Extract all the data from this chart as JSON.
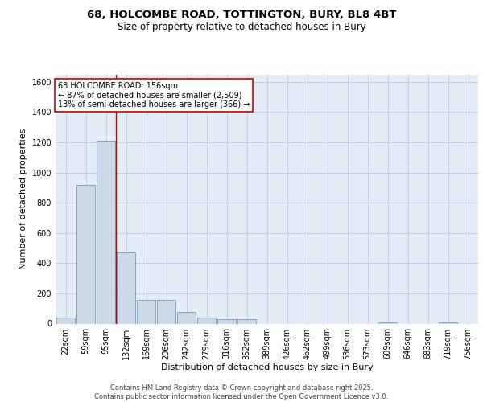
{
  "title_line1": "68, HOLCOMBE ROAD, TOTTINGTON, BURY, BL8 4BT",
  "title_line2": "Size of property relative to detached houses in Bury",
  "xlabel": "Distribution of detached houses by size in Bury",
  "ylabel": "Number of detached properties",
  "categories": [
    "22sqm",
    "59sqm",
    "95sqm",
    "132sqm",
    "169sqm",
    "206sqm",
    "242sqm",
    "279sqm",
    "316sqm",
    "352sqm",
    "389sqm",
    "426sqm",
    "462sqm",
    "499sqm",
    "536sqm",
    "573sqm",
    "609sqm",
    "646sqm",
    "683sqm",
    "719sqm",
    "756sqm"
  ],
  "values": [
    40,
    920,
    1210,
    470,
    155,
    155,
    75,
    40,
    30,
    30,
    0,
    0,
    0,
    0,
    0,
    0,
    10,
    0,
    0,
    10,
    0
  ],
  "bar_color": "#ccd9e8",
  "bar_edge_color": "#7799bb",
  "vline_color": "#cc0000",
  "vline_x_index": 2.5,
  "annotation_text_line1": "68 HOLCOMBE ROAD: 156sqm",
  "annotation_text_line2": "← 87% of detached houses are smaller (2,509)",
  "annotation_text_line3": "13% of semi-detached houses are larger (366) →",
  "annotation_box_color": "#cc0000",
  "annotation_box_bg": "#ffffff",
  "ylim": [
    0,
    1650
  ],
  "yticks": [
    0,
    200,
    400,
    600,
    800,
    1000,
    1200,
    1400,
    1600
  ],
  "grid_color": "#c0cedf",
  "bg_color": "#e4edf5",
  "footer_line1": "Contains HM Land Registry data © Crown copyright and database right 2025.",
  "footer_line2": "Contains public sector information licensed under the Open Government Licence v3.0.",
  "title_fontsize": 9.5,
  "subtitle_fontsize": 8.5,
  "axis_label_fontsize": 8,
  "tick_fontsize": 7,
  "footer_fontsize": 6,
  "ann_fontsize": 7
}
